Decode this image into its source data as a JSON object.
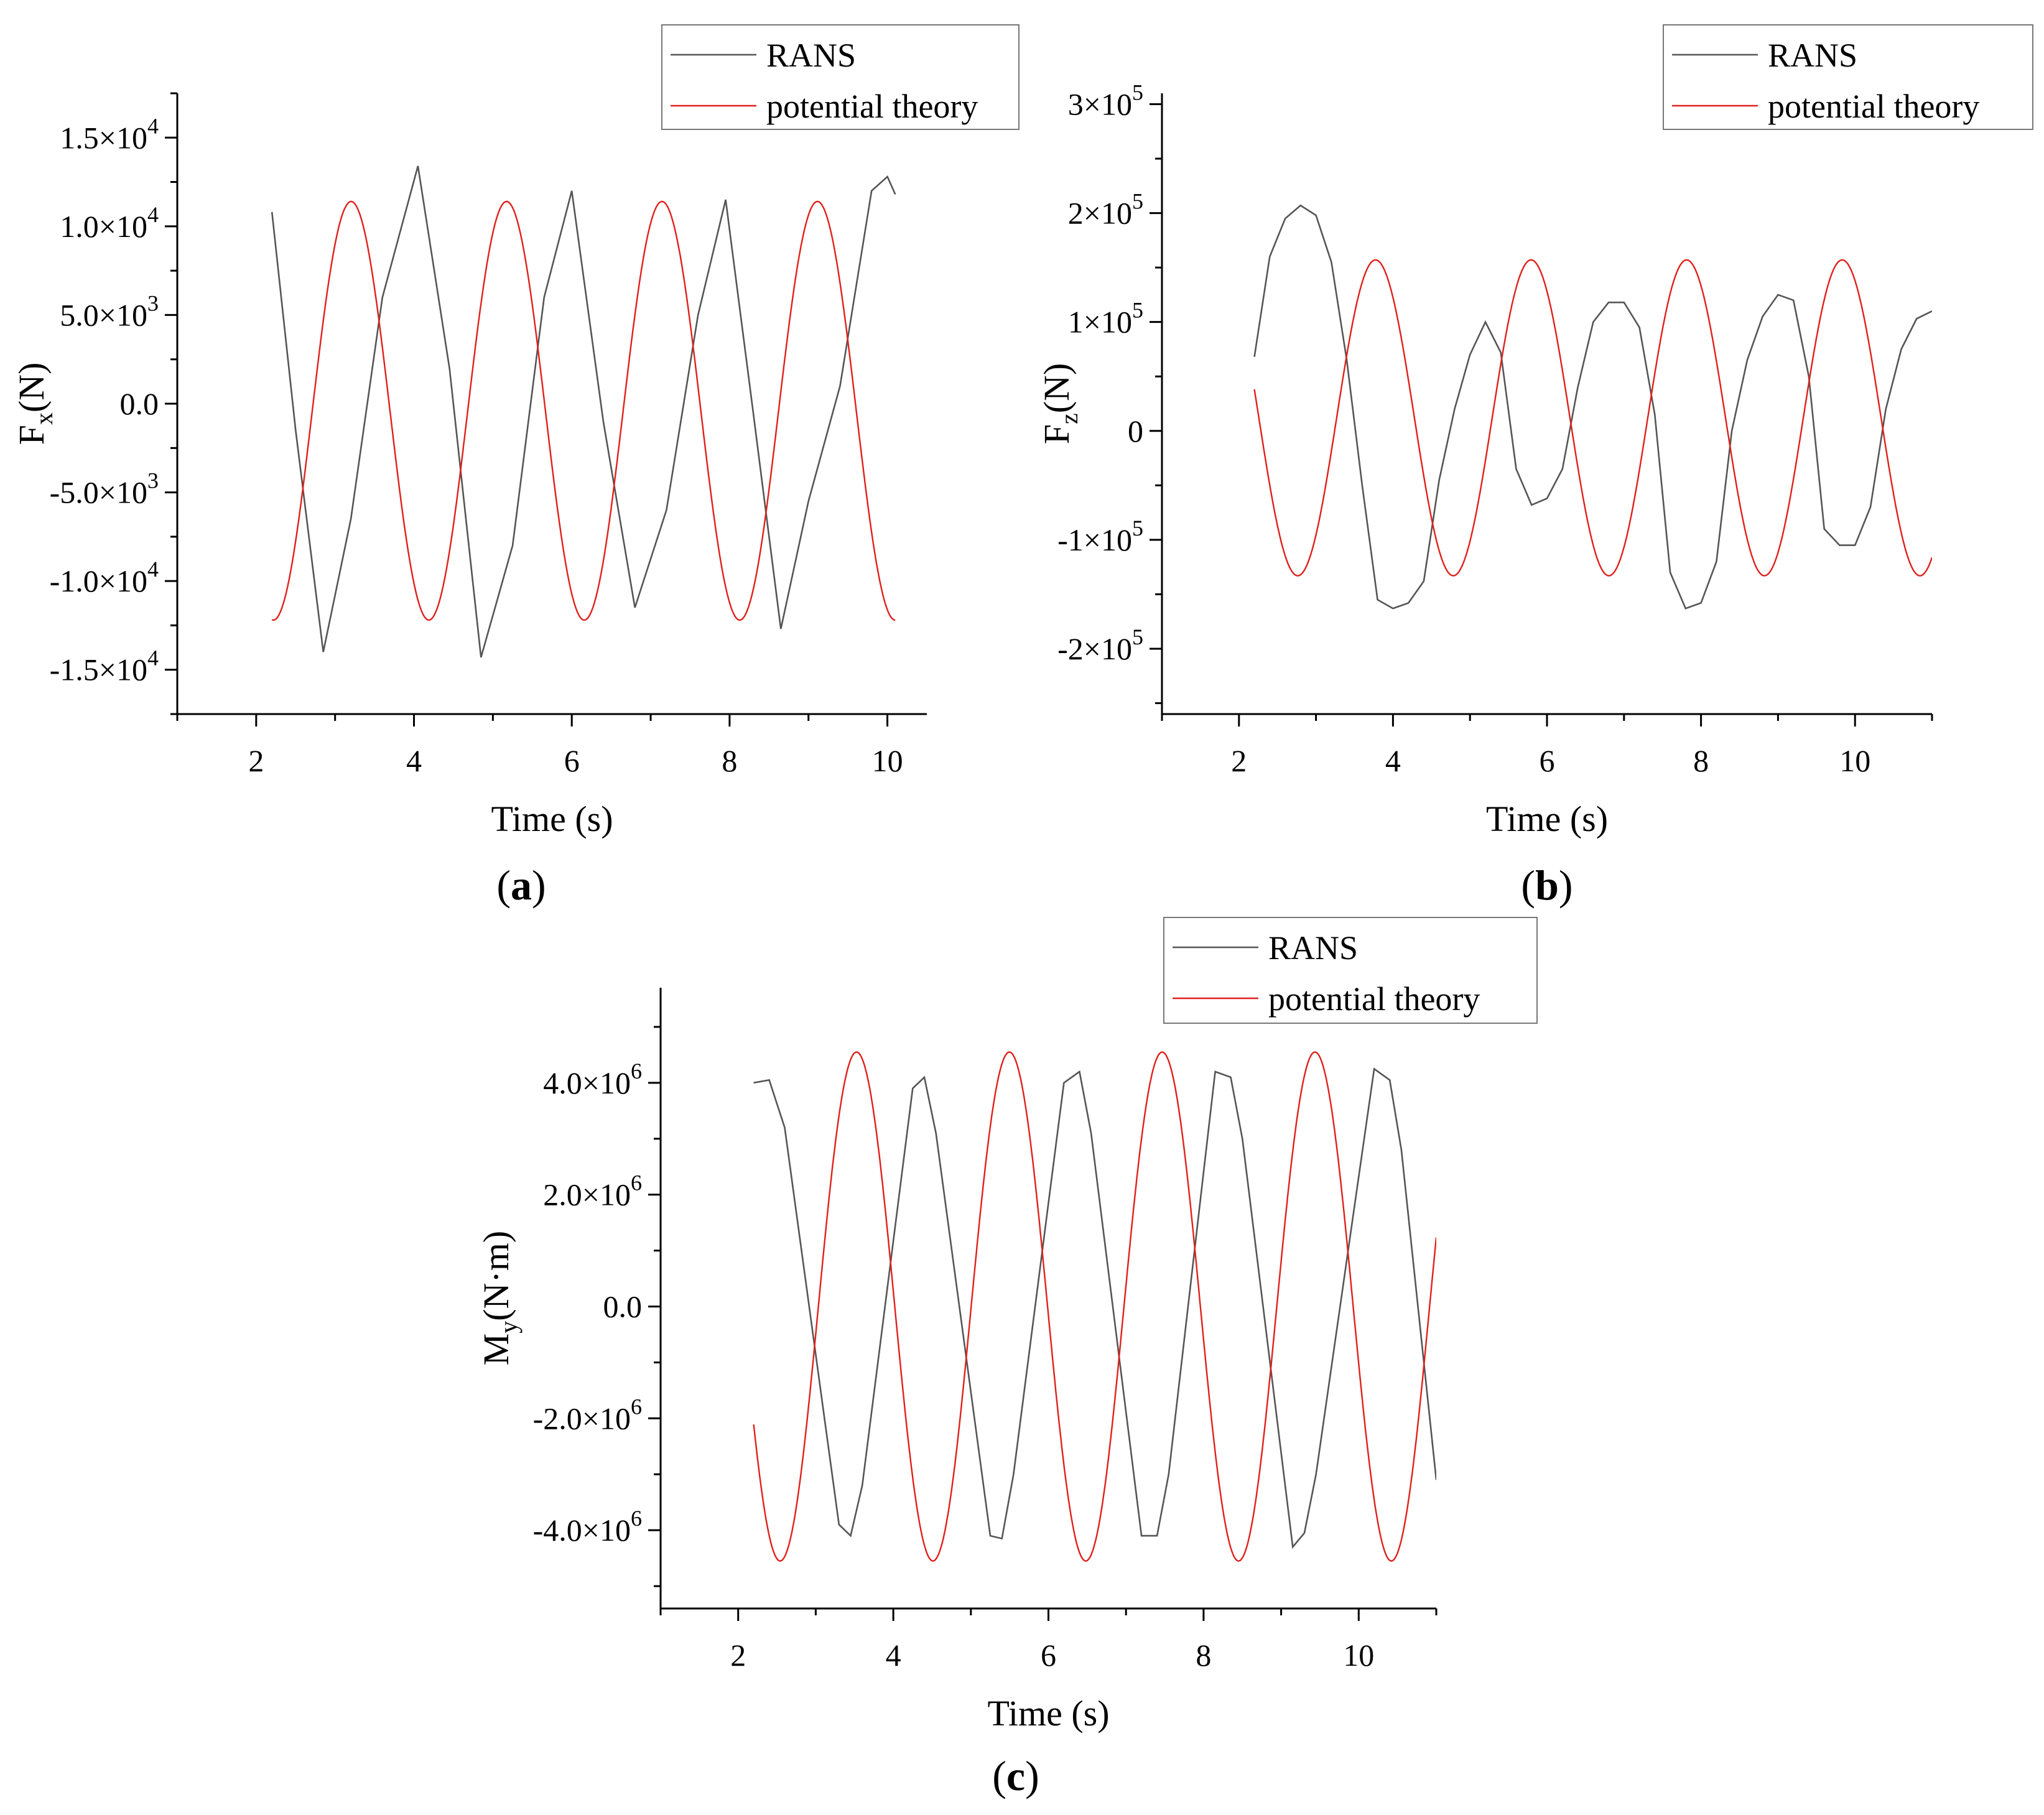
{
  "chart_data": [
    {
      "panel": "(a)",
      "type": "line",
      "xlabel": "Time (s)",
      "ylabel": "Fx(N)",
      "ylabel_main": "F",
      "ylabel_sub": "x",
      "ylabel_rest": "(N)",
      "xlim": [
        1,
        10.5
      ],
      "ylim": [
        -17500,
        17500
      ],
      "x_ticks": [
        2,
        4,
        6,
        8,
        10
      ],
      "x_tick_labels": [
        "2",
        "4",
        "6",
        "8",
        "10"
      ],
      "y_ticks": [
        -15000,
        -10000,
        -5000,
        0,
        5000,
        10000,
        15000
      ],
      "y_tick_labels": [
        {
          "m": "-1.5×10",
          "e": "4"
        },
        {
          "m": "-1.0×10",
          "e": "4"
        },
        {
          "m": "-5.0×10",
          "e": "3"
        },
        {
          "m": "0.0",
          "e": ""
        },
        {
          "m": "5.0×10",
          "e": "3"
        },
        {
          "m": "1.0×10",
          "e": "4"
        },
        {
          "m": "1.5×10",
          "e": "4"
        }
      ],
      "legend_position": "top-right",
      "series": [
        {
          "name": "RANS",
          "color": "#555555",
          "x": [
            2.2,
            2.5,
            2.85,
            3.2,
            3.6,
            4.05,
            4.45,
            4.85,
            5.25,
            5.65,
            6.0,
            6.4,
            6.8,
            7.2,
            7.6,
            7.95,
            8.3,
            8.65,
            9.0,
            9.4,
            9.8,
            10.0,
            10.1
          ],
          "y": [
            10800,
            -1500,
            -14000,
            -6500,
            6000,
            13400,
            2000,
            -14300,
            -8000,
            6000,
            12000,
            -1000,
            -11500,
            -6000,
            5000,
            11500,
            -500,
            -12700,
            -5500,
            1000,
            12000,
            12800,
            11800
          ]
        },
        {
          "name": "potential theory",
          "color": "#e0201b",
          "x": [
            2.2,
            11.0
          ],
          "func": "sin",
          "amplitude": 11800,
          "offset": -400,
          "period": 1.97,
          "phase": 3.92,
          "x_end": 10.1
        }
      ]
    },
    {
      "panel": "(b)",
      "type": "line",
      "xlabel": "Time (s)",
      "ylabel": "Fz(N)",
      "ylabel_main": "F",
      "ylabel_sub": "z",
      "ylabel_rest": "(N)",
      "xlim": [
        1,
        11
      ],
      "ylim": [
        -260000,
        310000
      ],
      "x_ticks": [
        2,
        4,
        6,
        8,
        10
      ],
      "x_tick_labels": [
        "2",
        "4",
        "6",
        "8",
        "10"
      ],
      "y_ticks": [
        -200000,
        -100000,
        0,
        100000,
        200000,
        300000
      ],
      "y_tick_labels": [
        {
          "m": "-2×10",
          "e": "5"
        },
        {
          "m": "-1×10",
          "e": "5"
        },
        {
          "m": "0",
          "e": ""
        },
        {
          "m": "1×10",
          "e": "5"
        },
        {
          "m": "2×10",
          "e": "5"
        },
        {
          "m": "3×10",
          "e": "5"
        }
      ],
      "legend_position": "top-right",
      "series": [
        {
          "name": "RANS",
          "color": "#555555",
          "x": [
            2.2,
            2.4,
            2.6,
            2.8,
            3.0,
            3.2,
            3.4,
            3.6,
            3.8,
            4.0,
            4.2,
            4.4,
            4.6,
            4.8,
            5.0,
            5.2,
            5.4,
            5.6,
            5.8,
            6.0,
            6.2,
            6.4,
            6.6,
            6.8,
            7.0,
            7.2,
            7.4,
            7.6,
            7.8,
            8.0,
            8.2,
            8.4,
            8.6,
            8.8,
            9.0,
            9.2,
            9.4,
            9.6,
            9.8,
            10.0,
            10.2,
            10.4,
            10.6,
            10.8,
            11.0
          ],
          "y": [
            68000,
            160000,
            195000,
            207000,
            198000,
            155000,
            65000,
            -50000,
            -155000,
            -163000,
            -158000,
            -138000,
            -45000,
            20000,
            70000,
            100000,
            72000,
            -35000,
            -68000,
            -62000,
            -35000,
            40000,
            100000,
            118000,
            118000,
            95000,
            15000,
            -130000,
            -163000,
            -158000,
            -120000,
            0,
            65000,
            105000,
            125000,
            120000,
            50000,
            -90000,
            -105000,
            -105000,
            -70000,
            20000,
            75000,
            103000,
            110000
          ]
        },
        {
          "name": "potential theory",
          "color": "#e0201b",
          "x": [
            2.2,
            11.0
          ],
          "func": "sin",
          "amplitude": 145000,
          "offset": 12000,
          "period": 2.02,
          "phase": 2.4,
          "x_end": 11.0
        }
      ]
    },
    {
      "panel": "(c)",
      "type": "line",
      "xlabel": "Time (s)",
      "ylabel": "My(N·m)",
      "ylabel_main": "M",
      "ylabel_sub": "y",
      "ylabel_rest": "(N·m)",
      "xlim": [
        1,
        11
      ],
      "ylim": [
        -5400000,
        5700000
      ],
      "x_ticks": [
        2,
        4,
        6,
        8,
        10
      ],
      "x_tick_labels": [
        "2",
        "4",
        "6",
        "8",
        "10"
      ],
      "y_ticks": [
        -4000000,
        -2000000,
        0,
        2000000,
        4000000
      ],
      "y_tick_labels": [
        {
          "m": "-4.0×10",
          "e": "6"
        },
        {
          "m": "-2.0×10",
          "e": "6"
        },
        {
          "m": "0.0",
          "e": ""
        },
        {
          "m": "2.0×10",
          "e": "6"
        },
        {
          "m": "4.0×10",
          "e": "6"
        }
      ],
      "legend_position": "top-right",
      "series": [
        {
          "name": "RANS",
          "color": "#555555",
          "x": [
            2.2,
            2.4,
            2.6,
            3.3,
            3.45,
            3.6,
            4.25,
            4.4,
            4.55,
            5.25,
            5.4,
            5.55,
            6.2,
            6.4,
            6.55,
            7.2,
            7.4,
            7.55,
            8.15,
            8.35,
            8.5,
            9.15,
            9.3,
            9.45,
            10.2,
            10.4,
            10.55,
            11.0
          ],
          "y": [
            4000000,
            4050000,
            3200000,
            -3900000,
            -4100000,
            -3200000,
            3900000,
            4100000,
            3100000,
            -4100000,
            -4150000,
            -3000000,
            4000000,
            4200000,
            3100000,
            -4100000,
            -4100000,
            -3000000,
            4200000,
            4100000,
            3000000,
            -4300000,
            -4050000,
            -3000000,
            4250000,
            4050000,
            2800000,
            -3100000
          ]
        },
        {
          "name": "potential theory",
          "color": "#e0201b",
          "x": [
            2.2,
            11.0
          ],
          "func": "sin",
          "amplitude": 4550000,
          "offset": 0,
          "period": 1.97,
          "phase": 2.89,
          "x_end": 11.0
        }
      ]
    }
  ]
}
